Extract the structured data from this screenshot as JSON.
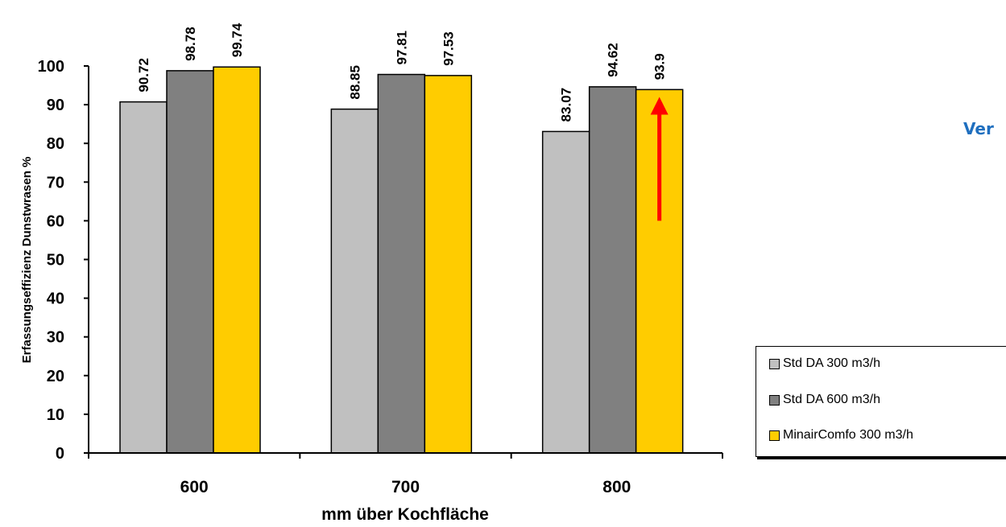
{
  "chart_data": {
    "type": "bar",
    "ylabel": "Erfassungseffizienz Dunstwrasen %",
    "xlabel": "mm über Kochfläche",
    "categories": [
      "600",
      "700",
      "800"
    ],
    "ylim": [
      0,
      100
    ],
    "yticks": [
      0,
      10,
      20,
      30,
      40,
      50,
      60,
      70,
      80,
      90,
      100
    ],
    "grid": false,
    "legend_position": "right",
    "series": [
      {
        "name": "Std DA  300  m3/h",
        "color": "#c0c0c0",
        "values": [
          90.72,
          88.85,
          83.07
        ],
        "labels": [
          "90.72",
          "88.85",
          "83.07"
        ]
      },
      {
        "name": "Std DA  600  m3/h",
        "color": "#808080",
        "values": [
          98.78,
          97.81,
          94.62
        ],
        "labels": [
          "98.78",
          "97.81",
          "94.62"
        ]
      },
      {
        "name": "MinairComfo  300  m3/h",
        "color": "#ffcc00",
        "values": [
          99.74,
          97.53,
          93.9
        ],
        "labels": [
          "99.74",
          "97.53",
          "93.9"
        ]
      }
    ],
    "annotation": {
      "type": "arrow",
      "color": "#ff0000",
      "series": 2,
      "category": 2,
      "from_value": 60,
      "to_value": 92
    }
  },
  "side_text": "Ver"
}
